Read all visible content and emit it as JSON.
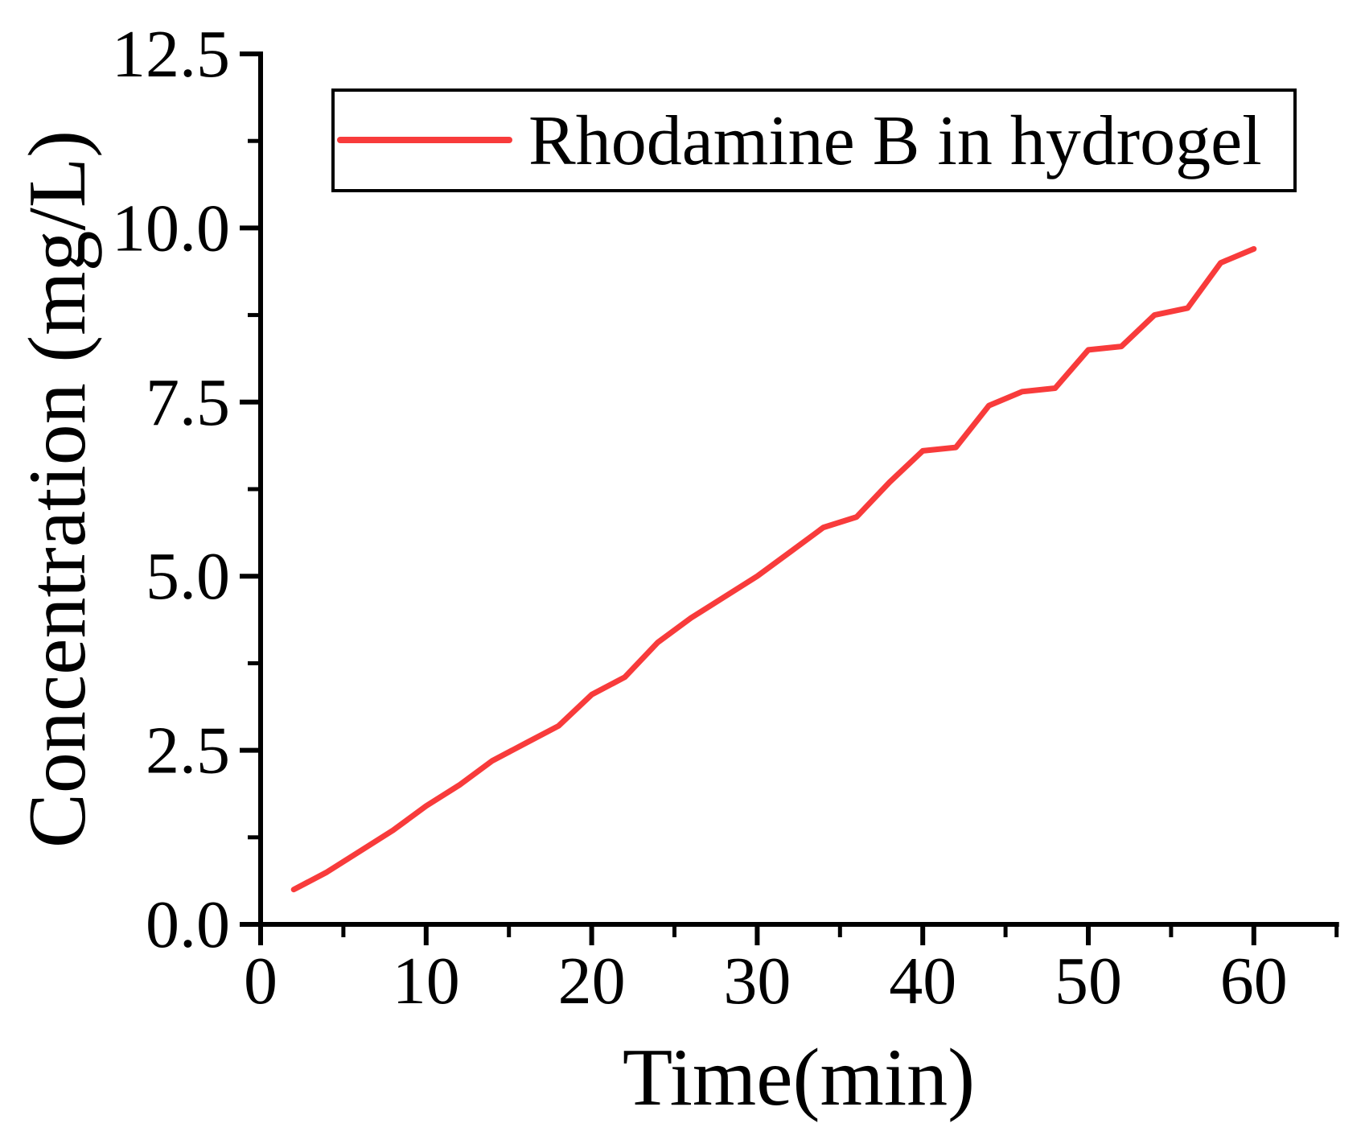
{
  "chart_data": {
    "type": "line",
    "title": "",
    "xlabel": "Time(min)",
    "ylabel": "Concentration (mg/L)",
    "xlim": [
      0,
      65
    ],
    "ylim": [
      0,
      12.5
    ],
    "grid": false,
    "legend_position": "top-center-inside",
    "x": [
      2,
      4,
      6,
      8,
      10,
      12,
      14,
      16,
      18,
      20,
      22,
      24,
      26,
      28,
      30,
      32,
      34,
      36,
      38,
      40,
      42,
      44,
      46,
      48,
      50,
      52,
      54,
      56,
      58,
      60
    ],
    "series": [
      {
        "name": "Rhodamine B in hydrogel",
        "color": "#f83b3b",
        "values": [
          0.5,
          0.75,
          1.05,
          1.35,
          1.7,
          2.0,
          2.35,
          2.6,
          2.85,
          3.3,
          3.55,
          4.05,
          4.4,
          4.7,
          5.0,
          5.35,
          5.7,
          5.85,
          6.35,
          6.8,
          6.85,
          7.45,
          7.65,
          7.7,
          8.25,
          8.3,
          8.75,
          8.85,
          9.5,
          9.7
        ]
      }
    ],
    "axes": {
      "x": {
        "major": [
          0,
          10,
          20,
          30,
          40,
          50,
          60
        ],
        "major_labels": [
          "0",
          "10",
          "20",
          "30",
          "40",
          "50",
          "60"
        ],
        "minor": [
          5,
          15,
          25,
          35,
          45,
          55,
          65
        ]
      },
      "y": {
        "major": [
          0,
          2.5,
          5,
          7.5,
          10,
          12.5
        ],
        "major_labels": [
          "0.0",
          "2.5",
          "5.0",
          "7.5",
          "10.0",
          "12.5"
        ],
        "minor": [
          1.25,
          3.75,
          6.25,
          8.75,
          11.25
        ]
      }
    },
    "colors": {
      "line": "#f83b3b",
      "axis": "#000000",
      "text": "#000000",
      "background": "#ffffff"
    }
  }
}
